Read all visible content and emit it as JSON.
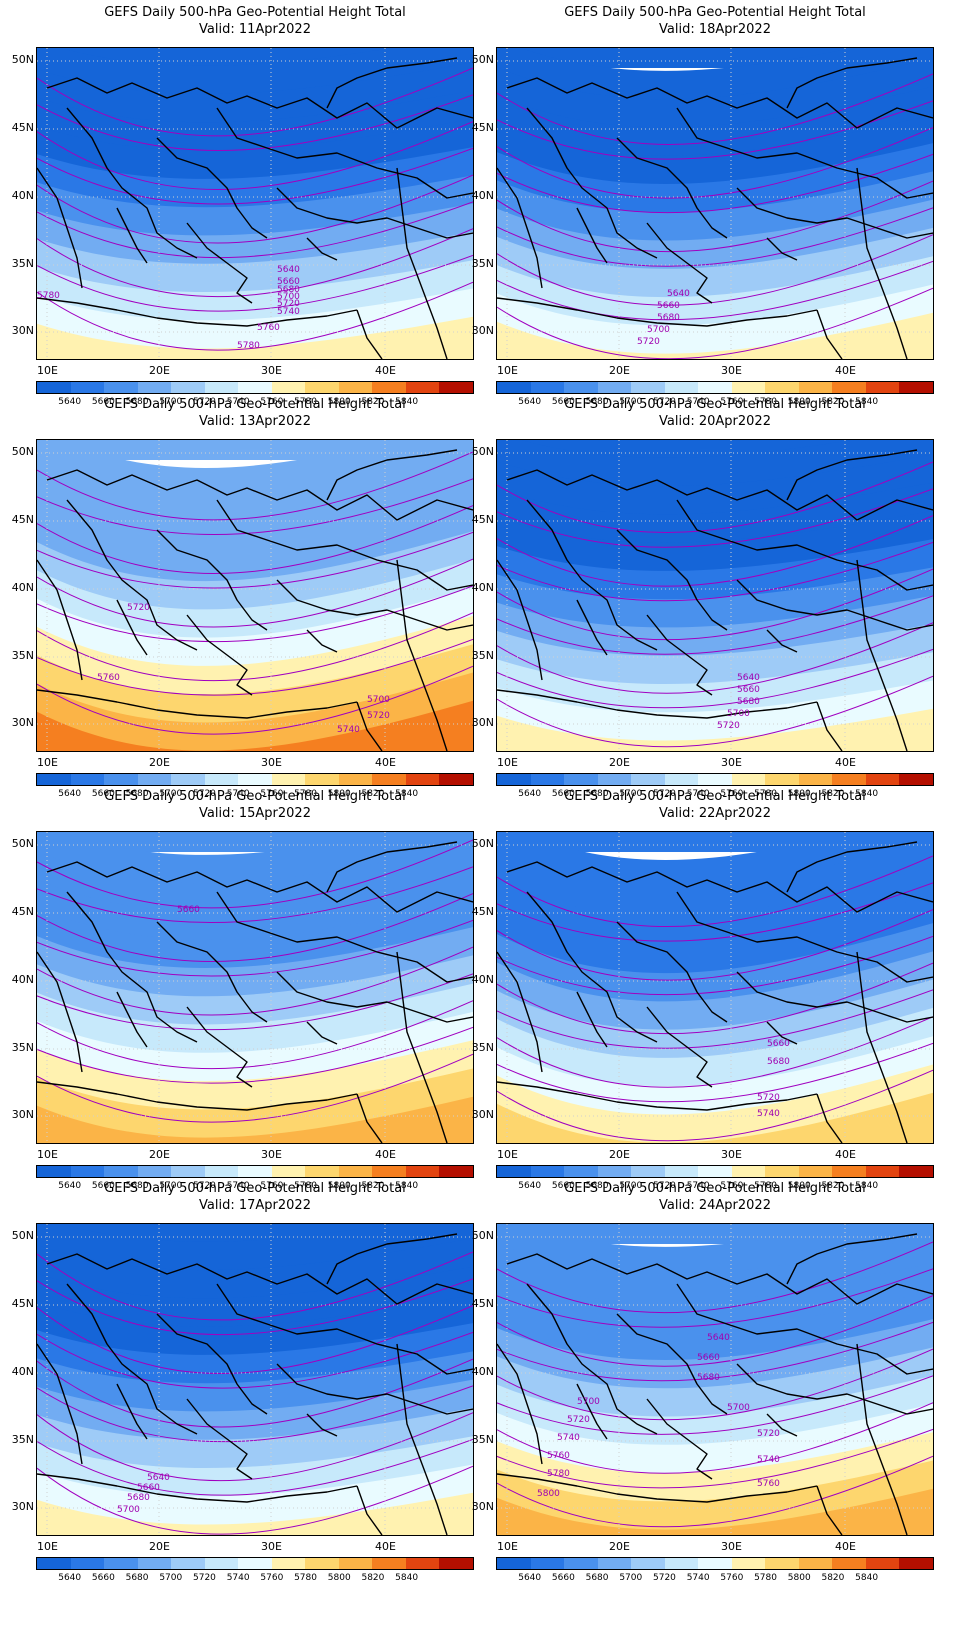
{
  "common": {
    "title": "GEFS Daily 500-hPa Geo-Potential Height Total",
    "valid_prefix": "Valid:",
    "y_ticks": [
      "50N",
      "45N",
      "40N",
      "35N",
      "30N"
    ],
    "x_ticks": [
      "10E",
      "20E",
      "30E",
      "40E"
    ],
    "colorbar": {
      "labels": [
        "5640",
        "5660",
        "5680",
        "5700",
        "5720",
        "5740",
        "5760",
        "5780",
        "5800",
        "5820",
        "5840"
      ],
      "colors": [
        "#1565d8",
        "#2a78e6",
        "#4a91ed",
        "#72acf2",
        "#9ecbf7",
        "#c7e9fb",
        "#e9fbff",
        "#fff2b0",
        "#fdd66e",
        "#fbb447",
        "#f57f20",
        "#e24410",
        "#b40f00"
      ]
    }
  },
  "panels": [
    {
      "valid": "11Apr2022",
      "contours": [
        {
          "value": 5640,
          "x": 240,
          "y": 224
        },
        {
          "value": 5660,
          "x": 240,
          "y": 236
        },
        {
          "value": 5680,
          "x": 240,
          "y": 244
        },
        {
          "value": 5700,
          "x": 240,
          "y": 251
        },
        {
          "value": 5720,
          "x": 240,
          "y": 258
        },
        {
          "value": 5740,
          "x": 240,
          "y": 266
        },
        {
          "value": 5760,
          "x": 220,
          "y": 282
        },
        {
          "value": 5780,
          "x": 0,
          "y": 250
        },
        {
          "value": 5780,
          "x": 200,
          "y": 300
        }
      ]
    },
    {
      "valid": "18Apr2022",
      "contours": [
        {
          "value": 5640,
          "x": 170,
          "y": 248
        },
        {
          "value": 5660,
          "x": 160,
          "y": 260
        },
        {
          "value": 5680,
          "x": 160,
          "y": 272
        },
        {
          "value": 5700,
          "x": 150,
          "y": 284
        },
        {
          "value": 5720,
          "x": 140,
          "y": 296
        }
      ]
    },
    {
      "valid": "13Apr2022",
      "contours": [
        {
          "value": 5720,
          "x": 90,
          "y": 170
        },
        {
          "value": 5760,
          "x": 60,
          "y": 240
        },
        {
          "value": 5700,
          "x": 330,
          "y": 262
        },
        {
          "value": 5720,
          "x": 330,
          "y": 278
        },
        {
          "value": 5740,
          "x": 300,
          "y": 292
        }
      ]
    },
    {
      "valid": "20Apr2022",
      "contours": [
        {
          "value": 5640,
          "x": 240,
          "y": 240
        },
        {
          "value": 5660,
          "x": 240,
          "y": 252
        },
        {
          "value": 5680,
          "x": 240,
          "y": 264
        },
        {
          "value": 5700,
          "x": 230,
          "y": 276
        },
        {
          "value": 5720,
          "x": 220,
          "y": 288
        }
      ]
    },
    {
      "valid": "15Apr2022",
      "contours": [
        {
          "value": 5660,
          "x": 140,
          "y": 80
        }
      ]
    },
    {
      "valid": "22Apr2022",
      "contours": [
        {
          "value": 5660,
          "x": 270,
          "y": 214
        },
        {
          "value": 5680,
          "x": 270,
          "y": 232
        },
        {
          "value": 5720,
          "x": 260,
          "y": 268
        },
        {
          "value": 5740,
          "x": 260,
          "y": 284
        }
      ]
    },
    {
      "valid": "17Apr2022",
      "contours": [
        {
          "value": 5640,
          "x": 110,
          "y": 256
        },
        {
          "value": 5660,
          "x": 100,
          "y": 266
        },
        {
          "value": 5680,
          "x": 90,
          "y": 276
        },
        {
          "value": 5700,
          "x": 80,
          "y": 288
        }
      ]
    },
    {
      "valid": "24Apr2022",
      "contours": [
        {
          "value": 5640,
          "x": 210,
          "y": 116
        },
        {
          "value": 5660,
          "x": 200,
          "y": 136
        },
        {
          "value": 5680,
          "x": 200,
          "y": 156
        },
        {
          "value": 5700,
          "x": 80,
          "y": 180
        },
        {
          "value": 5700,
          "x": 230,
          "y": 186
        },
        {
          "value": 5720,
          "x": 70,
          "y": 198
        },
        {
          "value": 5720,
          "x": 260,
          "y": 212
        },
        {
          "value": 5740,
          "x": 60,
          "y": 216
        },
        {
          "value": 5740,
          "x": 260,
          "y": 238
        },
        {
          "value": 5760,
          "x": 50,
          "y": 234
        },
        {
          "value": 5760,
          "x": 260,
          "y": 262
        },
        {
          "value": 5780,
          "x": 50,
          "y": 252
        },
        {
          "value": 5800,
          "x": 40,
          "y": 272
        }
      ]
    }
  ]
}
